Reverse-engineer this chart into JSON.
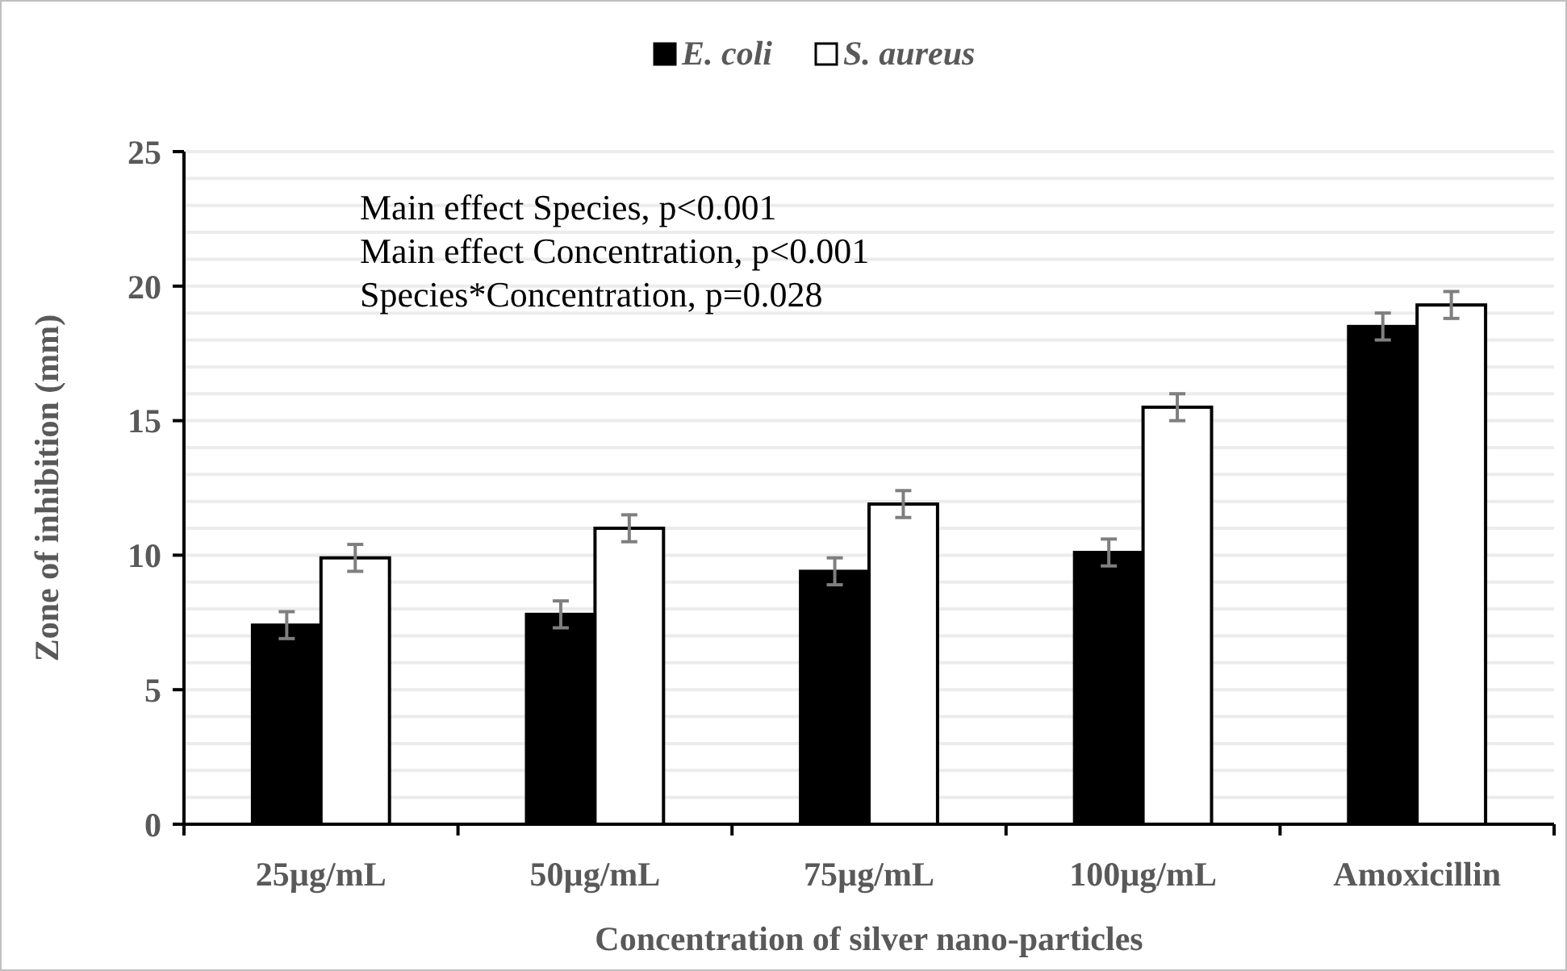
{
  "chart_data": {
    "type": "bar",
    "xlabel": "Concentration of silver nano-particles",
    "ylabel": "Zone of inhibition (mm)",
    "categories": [
      "25µg/mL",
      "50µg/mL",
      "75µg/mL",
      "100µg/mL",
      "Amoxicillin"
    ],
    "series": [
      {
        "name": "E. coli",
        "color": "#000000",
        "values": [
          7.4,
          7.8,
          9.4,
          10.1,
          18.5
        ],
        "errors": [
          0.5,
          0.5,
          0.5,
          0.5,
          0.5
        ]
      },
      {
        "name": "S. aureus",
        "color": "#ffffff",
        "values": [
          9.9,
          11.0,
          11.9,
          15.5,
          19.3
        ],
        "errors": [
          0.5,
          0.5,
          0.5,
          0.5,
          0.5
        ]
      }
    ],
    "ylim": [
      0,
      25
    ],
    "yticks": [
      0,
      {
        "value": 1,
        "label": null
      },
      {
        "value": 2,
        "label": null
      },
      {
        "value": 3,
        "label": null
      },
      {
        "value": 4,
        "label": null
      },
      5,
      {
        "value": 6,
        "label": null
      },
      {
        "value": 7,
        "label": null
      },
      {
        "value": 8,
        "label": null
      },
      {
        "value": 9,
        "label": null
      },
      10,
      {
        "value": 11,
        "label": null
      },
      {
        "value": 12,
        "label": null
      },
      {
        "value": 13,
        "label": null
      },
      {
        "value": 14,
        "label": null
      },
      15,
      {
        "value": 16,
        "label": null
      },
      {
        "value": 17,
        "label": null
      },
      {
        "value": 18,
        "label": null
      },
      {
        "value": 19,
        "label": null
      },
      20,
      {
        "value": 21,
        "label": null
      },
      {
        "value": 22,
        "label": null
      },
      {
        "value": 23,
        "label": null
      },
      {
        "value": 24,
        "label": null
      },
      25
    ],
    "grid": "y",
    "legend": "top",
    "annotations": [
      "Main effect Species, p<0.001",
      "Main effect Concentration, p<0.001",
      "Species*Concentration, p=0.028"
    ]
  }
}
